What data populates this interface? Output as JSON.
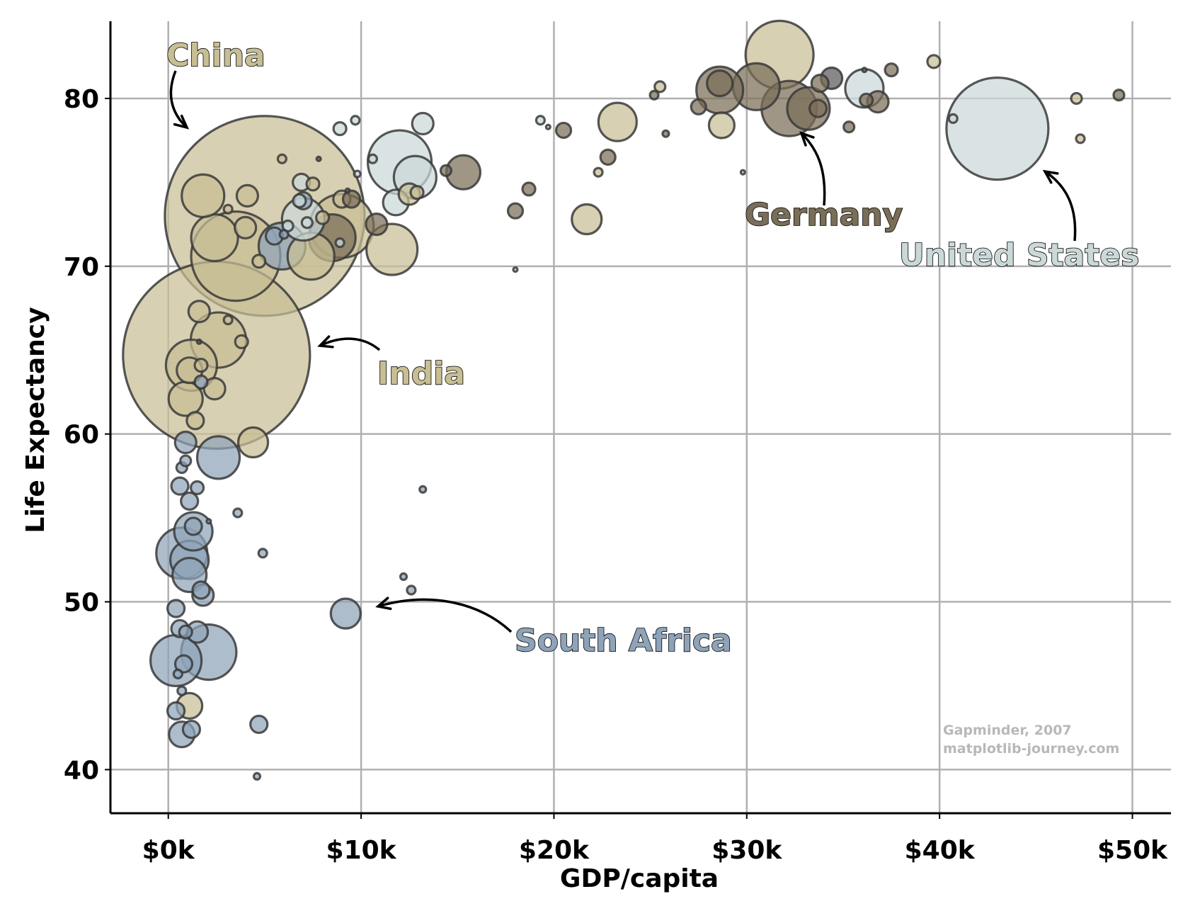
{
  "chart_data": {
    "type": "scatter",
    "xlabel": "GDP/capita",
    "ylabel": "Life Expectancy",
    "x_ticks": [
      {
        "value": 0,
        "label": "$0k"
      },
      {
        "value": 10000,
        "label": "$10k"
      },
      {
        "value": 20000,
        "label": "$20k"
      },
      {
        "value": 30000,
        "label": "$30k"
      },
      {
        "value": 40000,
        "label": "$40k"
      },
      {
        "value": 50000,
        "label": "$50k"
      }
    ],
    "y_ticks": [
      {
        "value": 40,
        "label": "40"
      },
      {
        "value": 50,
        "label": "50"
      },
      {
        "value": 60,
        "label": "60"
      },
      {
        "value": 70,
        "label": "70"
      },
      {
        "value": 80,
        "label": "80"
      }
    ],
    "xlim": [
      -3000,
      52000
    ],
    "ylim": [
      37.4,
      84.6
    ],
    "grid": true,
    "bubble_size_note": "",
    "colors": {
      "Asia": "#c8be94",
      "Africa": "#8fa3b8",
      "Europe": "#7a6e58",
      "Americas": "#cad8d8",
      "Oceania": "#5a5a5a",
      "edge": "#3a3a3a"
    },
    "points": [
      {
        "x": 5000,
        "y": 73,
        "s": 47,
        "g": "Asia"
      },
      {
        "x": 2500,
        "y": 64.7,
        "s": 44,
        "g": "Asia"
      },
      {
        "x": 43000,
        "y": 78.2,
        "s": 24,
        "g": "Americas"
      },
      {
        "x": 3500,
        "y": 70.6,
        "s": 21,
        "g": "Asia"
      },
      {
        "x": 9000,
        "y": 72.4,
        "s": 15,
        "g": "Asia"
      },
      {
        "x": 31700,
        "y": 82.6,
        "s": 16,
        "g": "Asia"
      },
      {
        "x": 32200,
        "y": 79.4,
        "s": 13,
        "g": "Europe"
      },
      {
        "x": 2600,
        "y": 65.6,
        "s": 13,
        "g": "Asia"
      },
      {
        "x": 2100,
        "y": 47.0,
        "s": 13,
        "g": "Africa"
      },
      {
        "x": 12000,
        "y": 76.2,
        "s": 15,
        "g": "Americas"
      },
      {
        "x": 5900,
        "y": 71.2,
        "s": 11,
        "g": "Africa"
      },
      {
        "x": 7000,
        "y": 72.8,
        "s": 10,
        "g": "Americas"
      },
      {
        "x": 8500,
        "y": 71.7,
        "s": 11,
        "g": "Europe"
      },
      {
        "x": 30500,
        "y": 80.7,
        "s": 11,
        "g": "Europe"
      },
      {
        "x": 28600,
        "y": 80.5,
        "s": 11,
        "g": "Europe"
      },
      {
        "x": 2400,
        "y": 71.7,
        "s": 11,
        "g": "Asia"
      },
      {
        "x": 1800,
        "y": 74.2,
        "s": 10,
        "g": "Asia"
      },
      {
        "x": 11600,
        "y": 71.0,
        "s": 12,
        "g": "Asia"
      },
      {
        "x": 7400,
        "y": 70.6,
        "s": 11,
        "g": "Asia"
      },
      {
        "x": 400,
        "y": 46.5,
        "s": 12,
        "g": "Africa"
      },
      {
        "x": 700,
        "y": 52.9,
        "s": 12,
        "g": "Africa"
      },
      {
        "x": 33200,
        "y": 79.4,
        "s": 10,
        "g": "Europe"
      },
      {
        "x": 1200,
        "y": 64.1,
        "s": 12,
        "g": "Asia"
      },
      {
        "x": 12800,
        "y": 75.3,
        "s": 10,
        "g": "Americas"
      },
      {
        "x": 2600,
        "y": 58.6,
        "s": 10,
        "g": "Africa"
      },
      {
        "x": 36100,
        "y": 80.6,
        "s": 9,
        "g": "Americas"
      },
      {
        "x": 1100,
        "y": 52.5,
        "s": 9,
        "g": "Africa"
      },
      {
        "x": 1300,
        "y": 54.2,
        "s": 9,
        "g": "Africa"
      },
      {
        "x": 1100,
        "y": 51.6,
        "s": 8,
        "g": "Africa"
      },
      {
        "x": 23300,
        "y": 78.6,
        "s": 9,
        "g": "Asia"
      },
      {
        "x": 15300,
        "y": 75.6,
        "s": 8,
        "g": "Europe"
      },
      {
        "x": 4400,
        "y": 59.5,
        "s": 7,
        "g": "Asia"
      },
      {
        "x": 900,
        "y": 62.1,
        "s": 8,
        "g": "Asia"
      },
      {
        "x": 28700,
        "y": 78.4,
        "s": 6,
        "g": "Asia"
      },
      {
        "x": 21700,
        "y": 72.8,
        "s": 7,
        "g": "Asia"
      },
      {
        "x": 9200,
        "y": 49.3,
        "s": 7,
        "g": "Africa"
      },
      {
        "x": 13200,
        "y": 78.5,
        "s": 5,
        "g": "Americas"
      },
      {
        "x": 36800,
        "y": 79.8,
        "s": 5,
        "g": "Europe"
      },
      {
        "x": 34400,
        "y": 81.2,
        "s": 5,
        "g": "Oceania"
      },
      {
        "x": 33800,
        "y": 80.9,
        "s": 4,
        "g": "Europe"
      },
      {
        "x": 900,
        "y": 59.5,
        "s": 5,
        "g": "Africa"
      },
      {
        "x": 1100,
        "y": 63.8,
        "s": 6,
        "g": "Asia"
      },
      {
        "x": 2400,
        "y": 62.7,
        "s": 5,
        "g": "Asia"
      },
      {
        "x": 1600,
        "y": 67.3,
        "s": 5,
        "g": "Asia"
      },
      {
        "x": 4100,
        "y": 74.2,
        "s": 5,
        "g": "Asia"
      },
      {
        "x": 6900,
        "y": 75.0,
        "s": 4,
        "g": "Americas"
      },
      {
        "x": 9000,
        "y": 74.0,
        "s": 4,
        "g": "Asia"
      },
      {
        "x": 11800,
        "y": 73.8,
        "s": 6,
        "g": "Americas"
      },
      {
        "x": 12500,
        "y": 74.3,
        "s": 5,
        "g": "Asia"
      },
      {
        "x": 10800,
        "y": 72.5,
        "s": 5,
        "g": "Europe"
      },
      {
        "x": 9500,
        "y": 74.0,
        "s": 4,
        "g": "Europe"
      },
      {
        "x": 4000,
        "y": 72.3,
        "s": 5,
        "g": "Asia"
      },
      {
        "x": 5500,
        "y": 71.8,
        "s": 4,
        "g": "Africa"
      },
      {
        "x": 7000,
        "y": 73.9,
        "s": 4,
        "g": "Africa"
      },
      {
        "x": 1800,
        "y": 50.4,
        "s": 5,
        "g": "Africa"
      },
      {
        "x": 1500,
        "y": 48.2,
        "s": 5,
        "g": "Africa"
      },
      {
        "x": 1100,
        "y": 43.8,
        "s": 6,
        "g": "Asia"
      },
      {
        "x": 700,
        "y": 42.1,
        "s": 6,
        "g": "Africa"
      },
      {
        "x": 1200,
        "y": 42.4,
        "s": 4,
        "g": "Africa"
      },
      {
        "x": 400,
        "y": 43.5,
        "s": 4,
        "g": "Africa"
      },
      {
        "x": 800,
        "y": 46.3,
        "s": 4,
        "g": "Africa"
      },
      {
        "x": 600,
        "y": 48.4,
        "s": 4,
        "g": "Africa"
      },
      {
        "x": 400,
        "y": 49.6,
        "s": 4,
        "g": "Africa"
      },
      {
        "x": 1700,
        "y": 50.7,
        "s": 4,
        "g": "Africa"
      },
      {
        "x": 1100,
        "y": 56.0,
        "s": 4,
        "g": "Africa"
      },
      {
        "x": 600,
        "y": 56.9,
        "s": 4,
        "g": "Africa"
      },
      {
        "x": 1500,
        "y": 56.8,
        "s": 3,
        "g": "Africa"
      },
      {
        "x": 1300,
        "y": 54.5,
        "s": 4,
        "g": "Africa"
      },
      {
        "x": 4700,
        "y": 42.7,
        "s": 4,
        "g": "Africa"
      },
      {
        "x": 3600,
        "y": 55.3,
        "s": 2,
        "g": "Africa"
      },
      {
        "x": 4900,
        "y": 52.9,
        "s": 2,
        "g": "Africa"
      },
      {
        "x": 12600,
        "y": 50.7,
        "s": 2,
        "g": "Africa"
      },
      {
        "x": 13200,
        "y": 56.7,
        "s": 1.5,
        "g": "Africa"
      },
      {
        "x": 12200,
        "y": 51.5,
        "s": 1.5,
        "g": "Africa"
      },
      {
        "x": 4600,
        "y": 39.6,
        "s": 1.5,
        "g": "Africa"
      },
      {
        "x": 700,
        "y": 58.0,
        "s": 2.5,
        "g": "Africa"
      },
      {
        "x": 900,
        "y": 58.4,
        "s": 2.5,
        "g": "Africa"
      },
      {
        "x": 1700,
        "y": 63.1,
        "s": 3,
        "g": "Africa"
      },
      {
        "x": 700,
        "y": 44.7,
        "s": 2,
        "g": "Africa"
      },
      {
        "x": 500,
        "y": 45.7,
        "s": 2,
        "g": "Africa"
      },
      {
        "x": 900,
        "y": 48.2,
        "s": 3,
        "g": "Africa"
      },
      {
        "x": 6800,
        "y": 73.9,
        "s": 3,
        "g": "Americas"
      },
      {
        "x": 8900,
        "y": 78.2,
        "s": 3,
        "g": "Americas"
      },
      {
        "x": 9700,
        "y": 78.7,
        "s": 2,
        "g": "Americas"
      },
      {
        "x": 19300,
        "y": 78.7,
        "s": 2,
        "g": "Americas"
      },
      {
        "x": 10600,
        "y": 76.4,
        "s": 2,
        "g": "Americas"
      },
      {
        "x": 40700,
        "y": 78.8,
        "s": 2,
        "g": "Americas"
      },
      {
        "x": 9800,
        "y": 75.5,
        "s": 1.5,
        "g": "Americas"
      },
      {
        "x": 8900,
        "y": 71.4,
        "s": 2,
        "g": "Americas"
      },
      {
        "x": 3100,
        "y": 73.4,
        "s": 2,
        "g": "Asia"
      },
      {
        "x": 3100,
        "y": 66.8,
        "s": 2,
        "g": "Asia"
      },
      {
        "x": 3800,
        "y": 65.5,
        "s": 3,
        "g": "Asia"
      },
      {
        "x": 4700,
        "y": 70.3,
        "s": 3,
        "g": "Asia"
      },
      {
        "x": 5900,
        "y": 76.4,
        "s": 2,
        "g": "Asia"
      },
      {
        "x": 6000,
        "y": 71.9,
        "s": 2,
        "g": "Africa"
      },
      {
        "x": 12900,
        "y": 74.4,
        "s": 3,
        "g": "Asia"
      },
      {
        "x": 18000,
        "y": 69.8,
        "s": 1,
        "g": "Asia"
      },
      {
        "x": 19700,
        "y": 78.3,
        "s": 1,
        "g": "Asia"
      },
      {
        "x": 25500,
        "y": 80.7,
        "s": 2.5,
        "g": "Asia"
      },
      {
        "x": 25800,
        "y": 77.9,
        "s": 1.5,
        "g": "Europe"
      },
      {
        "x": 25200,
        "y": 80.2,
        "s": 2,
        "g": "Europe"
      },
      {
        "x": 22300,
        "y": 75.6,
        "s": 2,
        "g": "Asia"
      },
      {
        "x": 22800,
        "y": 76.5,
        "s": 3.5,
        "g": "Europe"
      },
      {
        "x": 20500,
        "y": 78.1,
        "s": 3.5,
        "g": "Europe"
      },
      {
        "x": 18700,
        "y": 74.6,
        "s": 3,
        "g": "Europe"
      },
      {
        "x": 18000,
        "y": 73.3,
        "s": 3.5,
        "g": "Europe"
      },
      {
        "x": 14400,
        "y": 75.7,
        "s": 2.5,
        "g": "Europe"
      },
      {
        "x": 27500,
        "y": 79.5,
        "s": 3.5,
        "g": "Europe"
      },
      {
        "x": 29800,
        "y": 75.6,
        "s": 1,
        "g": "Asia"
      },
      {
        "x": 28600,
        "y": 80.9,
        "s": 6,
        "g": "Europe"
      },
      {
        "x": 35300,
        "y": 78.3,
        "s": 2.5,
        "g": "Europe"
      },
      {
        "x": 37500,
        "y": 81.7,
        "s": 3,
        "g": "Europe"
      },
      {
        "x": 39700,
        "y": 82.2,
        "s": 3,
        "g": "Asia"
      },
      {
        "x": 36100,
        "y": 81.7,
        "s": 1,
        "g": "Europe"
      },
      {
        "x": 47100,
        "y": 80.0,
        "s": 2.5,
        "g": "Asia"
      },
      {
        "x": 47300,
        "y": 77.6,
        "s": 2,
        "g": "Asia"
      },
      {
        "x": 49300,
        "y": 80.2,
        "s": 2.5,
        "g": "Europe"
      },
      {
        "x": 33700,
        "y": 79.4,
        "s": 4,
        "g": "Europe"
      },
      {
        "x": 36200,
        "y": 79.9,
        "s": 3,
        "g": "Europe"
      },
      {
        "x": 7500,
        "y": 74.9,
        "s": 3,
        "g": "Asia"
      },
      {
        "x": 8000,
        "y": 72.9,
        "s": 3,
        "g": "Asia"
      },
      {
        "x": 7800,
        "y": 76.4,
        "s": 1,
        "g": "Oceania"
      },
      {
        "x": 9300,
        "y": 74.5,
        "s": 1,
        "g": "Oceania"
      },
      {
        "x": 2100,
        "y": 54.8,
        "s": 1,
        "g": "Africa"
      },
      {
        "x": 1600,
        "y": 65.5,
        "s": 1,
        "g": "Oceania"
      },
      {
        "x": 1400,
        "y": 60.8,
        "s": 4,
        "g": "Asia"
      },
      {
        "x": 1700,
        "y": 64.1,
        "s": 3,
        "g": "Asia"
      },
      {
        "x": 6200,
        "y": 72.4,
        "s": 2.5,
        "g": "Americas"
      },
      {
        "x": 7200,
        "y": 72.6,
        "s": 2.5,
        "g": "Americas"
      }
    ],
    "annotations": [
      {
        "label": "China",
        "x": 5000,
        "y": 73
      },
      {
        "label": "India",
        "x": 2500,
        "y": 64.7
      },
      {
        "label": "Germany",
        "x": 32200,
        "y": 79.4
      },
      {
        "label": "United States",
        "x": 43000,
        "y": 78.2
      },
      {
        "label": "South Africa",
        "x": 9200,
        "y": 49.3
      }
    ],
    "credit": [
      "Gapminder, 2007",
      "matplotlib-journey.com"
    ]
  }
}
